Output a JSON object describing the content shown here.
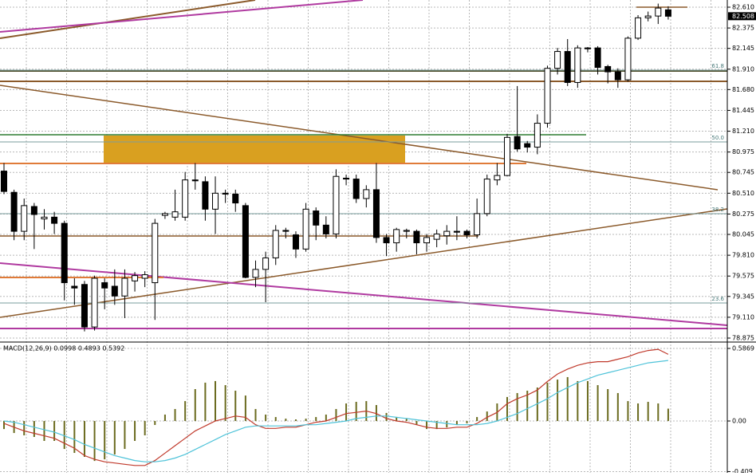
{
  "chart_data": [
    {
      "type": "candlestick",
      "open": [
        80.76,
        80.52,
        80.08,
        80.36,
        80.22,
        80.24,
        80.17,
        79.46,
        79.48,
        79.0,
        79.5,
        79.46,
        79.35,
        79.52,
        79.55,
        79.5,
        80.26,
        80.24,
        80.24,
        80.66,
        80.64,
        80.33,
        80.51,
        80.5,
        80.37,
        79.56,
        79.65,
        79.78,
        80.09,
        80.04,
        79.88,
        80.31,
        80.15,
        80.05,
        80.68,
        80.67,
        80.45,
        80.55,
        80.01,
        79.95,
        80.08,
        80.08,
        79.95,
        79.99,
        80.03,
        80.08,
        80.08,
        80.04,
        80.28,
        80.66,
        80.71,
        81.15,
        81.07,
        81.03,
        81.3,
        81.92,
        82.11,
        81.76,
        82.15,
        82.15,
        81.94,
        81.88,
        81.79,
        82.26,
        82.49,
        82.51,
        82.58
      ],
      "high": [
        80.85,
        80.55,
        80.45,
        80.4,
        80.33,
        80.3,
        80.2,
        79.55,
        79.52,
        79.58,
        79.55,
        79.65,
        79.65,
        79.62,
        79.63,
        80.22,
        80.3,
        80.55,
        80.75,
        80.85,
        80.7,
        80.7,
        80.55,
        80.55,
        80.4,
        79.75,
        79.85,
        80.15,
        80.12,
        80.08,
        80.4,
        80.35,
        80.25,
        80.78,
        80.72,
        80.72,
        80.6,
        80.85,
        80.05,
        80.12,
        80.11,
        80.1,
        80.05,
        80.1,
        80.15,
        80.25,
        80.1,
        80.45,
        80.72,
        80.85,
        81.18,
        81.72,
        81.1,
        81.4,
        81.95,
        82.15,
        82.25,
        82.18,
        82.16,
        82.17,
        81.96,
        81.92,
        82.28,
        82.52,
        82.56,
        82.65,
        82.62
      ],
      "low": [
        80.5,
        79.98,
        79.98,
        79.88,
        80.1,
        80.05,
        79.3,
        79.25,
        78.95,
        78.96,
        79.2,
        79.25,
        79.1,
        79.4,
        79.45,
        79.08,
        80.22,
        80.2,
        80.2,
        80.55,
        80.2,
        80.05,
        80.4,
        80.3,
        79.55,
        79.45,
        79.28,
        79.7,
        80.0,
        79.78,
        79.85,
        79.98,
        80.0,
        80.0,
        80.6,
        80.4,
        80.35,
        79.95,
        79.8,
        79.85,
        80.0,
        79.82,
        79.85,
        79.9,
        79.93,
        79.98,
        80.0,
        80.0,
        80.25,
        80.6,
        80.7,
        80.98,
        80.97,
        80.95,
        81.25,
        81.85,
        81.72,
        81.7,
        82.1,
        81.85,
        81.75,
        81.7,
        81.77,
        82.24,
        82.45,
        82.42,
        82.47
      ],
      "close": [
        80.53,
        80.08,
        80.37,
        80.27,
        80.24,
        80.17,
        79.5,
        79.44,
        79.0,
        79.55,
        79.44,
        79.35,
        79.55,
        79.58,
        79.59,
        80.17,
        80.28,
        80.3,
        80.66,
        80.65,
        80.33,
        80.51,
        80.5,
        80.4,
        79.56,
        79.65,
        79.78,
        80.09,
        80.08,
        79.88,
        80.33,
        80.15,
        80.05,
        80.7,
        80.67,
        80.45,
        80.55,
        80.01,
        79.95,
        80.1,
        80.09,
        79.95,
        80.01,
        80.05,
        80.08,
        80.07,
        80.04,
        80.28,
        80.67,
        80.71,
        81.14,
        81.01,
        81.03,
        81.3,
        81.92,
        82.11,
        81.76,
        82.15,
        82.14,
        81.93,
        81.88,
        81.79,
        82.26,
        82.49,
        82.51,
        82.6,
        82.508
      ],
      "color_up": "#ffffff",
      "color_down": "#000000",
      "ylim": [
        78.839,
        82.691
      ],
      "yticks": [
        {
          "value": 82.61,
          "label": "82.610"
        },
        82.375,
        82.145,
        {
          "value": 81.91,
          "label": "81.910"
        },
        {
          "value": 81.68,
          "label": "81.680"
        },
        81.445,
        {
          "value": 81.21,
          "label": "81.210"
        },
        80.975,
        80.745,
        {
          "value": 80.51,
          "label": "80.510"
        },
        80.275,
        80.045,
        {
          "value": 79.81,
          "label": "79.810"
        },
        79.575,
        79.345,
        {
          "value": 79.11,
          "label": "79.110"
        },
        78.875
      ],
      "grid": true,
      "last_price": 82.508,
      "fib_levels": [
        {
          "label": "61.8",
          "price": 81.899
        },
        {
          "label": "50.0",
          "price": 81.089
        },
        {
          "label": "38.2",
          "price": 80.279
        },
        {
          "label": "23.6",
          "price": 79.271
        }
      ]
    },
    {
      "type": "macd",
      "title": "MACD(12,26,9) 0.0998 0.4893 0.5392",
      "ylim": [
        -0.419,
        0.632
      ],
      "yticks": [
        0.5869,
        {
          "value": 0,
          "label": "0.00"
        },
        -0.409
      ],
      "series": [
        {
          "style": "bar",
          "color": "#6b6b1f",
          "values": [
            -0.065,
            -0.097,
            -0.116,
            -0.129,
            -0.161,
            -0.161,
            -0.226,
            -0.258,
            -0.29,
            -0.323,
            -0.31,
            -0.271,
            -0.226,
            -0.161,
            -0.116,
            -0.032,
            0.052,
            0.097,
            0.161,
            0.258,
            0.31,
            0.323,
            0.29,
            0.245,
            0.206,
            0.097,
            0.052,
            0.032,
            0.019,
            0.013,
            0.019,
            0.032,
            0.052,
            0.097,
            0.142,
            0.155,
            0.161,
            0.129,
            0.065,
            0.032,
            0.019,
            -0.032,
            -0.065,
            -0.065,
            -0.052,
            -0.032,
            -0.019,
            0.032,
            0.077,
            0.142,
            0.194,
            0.226,
            0.245,
            0.271,
            0.31,
            0.335,
            0.355,
            0.323,
            0.323,
            0.29,
            0.258,
            0.226,
            0.161,
            0.142,
            0.155,
            0.142,
            0.0998
          ]
        },
        {
          "style": "line",
          "color": "#c0392b",
          "values": [
            -0.02,
            -0.05,
            -0.08,
            -0.1,
            -0.12,
            -0.14,
            -0.18,
            -0.22,
            -0.28,
            -0.31,
            -0.33,
            -0.34,
            -0.35,
            -0.36,
            -0.36,
            -0.32,
            -0.26,
            -0.2,
            -0.14,
            -0.08,
            -0.04,
            0.0,
            0.02,
            0.04,
            0.03,
            -0.03,
            -0.06,
            -0.06,
            -0.05,
            -0.05,
            -0.03,
            -0.01,
            0.0,
            0.03,
            0.06,
            0.07,
            0.08,
            0.06,
            0.02,
            0.0,
            -0.01,
            -0.03,
            -0.05,
            -0.06,
            -0.06,
            -0.05,
            -0.05,
            -0.02,
            0.03,
            0.07,
            0.14,
            0.18,
            0.21,
            0.25,
            0.32,
            0.38,
            0.42,
            0.45,
            0.47,
            0.48,
            0.48,
            0.5,
            0.52,
            0.55,
            0.57,
            0.58,
            0.5392
          ]
        },
        {
          "style": "line",
          "color": "#4fc3d9",
          "values": [
            0.0,
            -0.01,
            -0.03,
            -0.05,
            -0.07,
            -0.09,
            -0.12,
            -0.15,
            -0.19,
            -0.22,
            -0.25,
            -0.28,
            -0.3,
            -0.32,
            -0.33,
            -0.33,
            -0.32,
            -0.3,
            -0.27,
            -0.23,
            -0.19,
            -0.15,
            -0.11,
            -0.08,
            -0.05,
            -0.04,
            -0.04,
            -0.04,
            -0.04,
            -0.04,
            -0.03,
            -0.03,
            -0.02,
            -0.01,
            0.0,
            0.02,
            0.03,
            0.04,
            0.04,
            0.03,
            0.02,
            0.01,
            0.0,
            -0.01,
            -0.02,
            -0.03,
            -0.03,
            -0.03,
            -0.02,
            0.0,
            0.03,
            0.06,
            0.1,
            0.14,
            0.18,
            0.23,
            0.27,
            0.31,
            0.34,
            0.37,
            0.39,
            0.41,
            0.43,
            0.45,
            0.47,
            0.48,
            0.4893
          ]
        }
      ]
    }
  ]
}
